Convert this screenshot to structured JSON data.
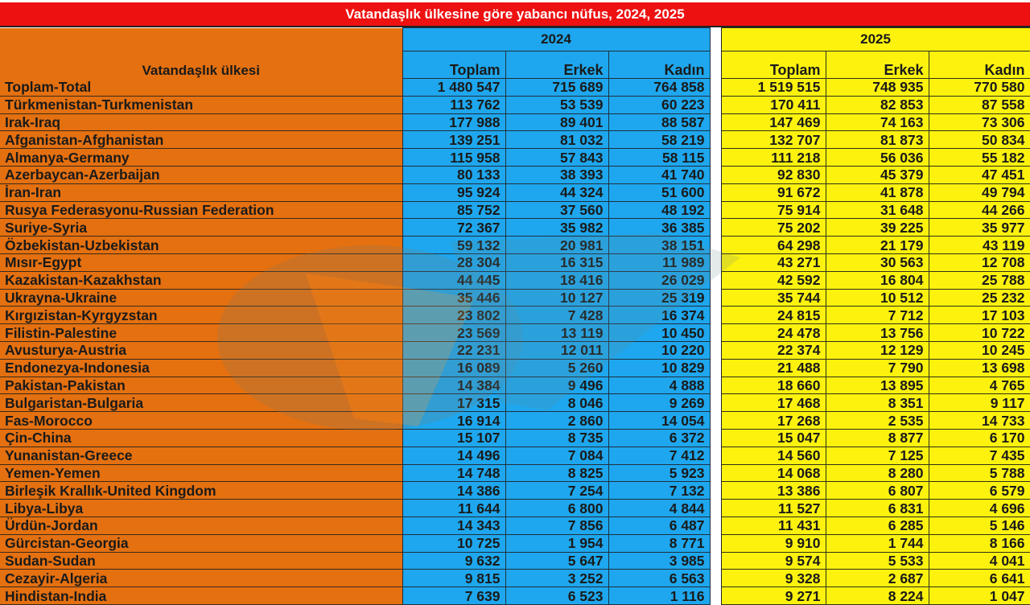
{
  "title": "Vatandaşlık ülkesine göre yabancı nüfus, 2024, 2025",
  "header": {
    "country_col": "Vatandaşlık ülkesi",
    "year_2024": "2024",
    "year_2025": "2025",
    "sub_2024": [
      "Toplam",
      "Erkek",
      "Kadın"
    ],
    "sub_2025": [
      "Toplam",
      "Erkek",
      "Kadın"
    ]
  },
  "colors": {
    "title_bg": "#ee1111",
    "country_bg": "#e47010",
    "col_2024_bg": "#1ea7ee",
    "col_2025_bg": "#fcf20d"
  },
  "rows": [
    {
      "country": "Toplam-Total",
      "v2024": [
        "1 480 547",
        "715 689",
        "764 858"
      ],
      "v2025": [
        "1 519 515",
        "748 935",
        "770 580"
      ]
    },
    {
      "country": "Türkmenistan-Turkmenistan",
      "v2024": [
        "113 762",
        "53 539",
        "60 223"
      ],
      "v2025": [
        "170 411",
        "82 853",
        "87 558"
      ]
    },
    {
      "country": "Irak-Iraq",
      "v2024": [
        "177 988",
        "89 401",
        "88 587"
      ],
      "v2025": [
        "147 469",
        "74 163",
        "73 306"
      ]
    },
    {
      "country": "Afganistan-Afghanistan",
      "v2024": [
        "139 251",
        "81 032",
        "58 219"
      ],
      "v2025": [
        "132 707",
        "81 873",
        "50 834"
      ]
    },
    {
      "country": "Almanya-Germany",
      "v2024": [
        "115 958",
        "57 843",
        "58 115"
      ],
      "v2025": [
        "111 218",
        "56 036",
        "55 182"
      ]
    },
    {
      "country": "Azerbaycan-Azerbaijan",
      "v2024": [
        "80 133",
        "38 393",
        "41 740"
      ],
      "v2025": [
        "92 830",
        "45 379",
        "47 451"
      ]
    },
    {
      "country": "İran-Iran",
      "v2024": [
        "95 924",
        "44 324",
        "51 600"
      ],
      "v2025": [
        "91 672",
        "41 878",
        "49 794"
      ]
    },
    {
      "country": "Rusya Federasyonu-Russian Federation",
      "v2024": [
        "85 752",
        "37 560",
        "48 192"
      ],
      "v2025": [
        "75 914",
        "31 648",
        "44 266"
      ]
    },
    {
      "country": "Suriye-Syria",
      "v2024": [
        "72 367",
        "35 982",
        "36 385"
      ],
      "v2025": [
        "75 202",
        "39 225",
        "35 977"
      ]
    },
    {
      "country": "Özbekistan-Uzbekistan",
      "v2024": [
        "59 132",
        "20 981",
        "38 151"
      ],
      "v2025": [
        "64 298",
        "21 179",
        "43 119"
      ]
    },
    {
      "country": "Mısır-Egypt",
      "v2024": [
        "28 304",
        "16 315",
        "11 989"
      ],
      "v2025": [
        "43 271",
        "30 563",
        "12 708"
      ]
    },
    {
      "country": "Kazakistan-Kazakhstan",
      "v2024": [
        "44 445",
        "18 416",
        "26 029"
      ],
      "v2025": [
        "42 592",
        "16 804",
        "25 788"
      ]
    },
    {
      "country": "Ukrayna-Ukraine",
      "v2024": [
        "35 446",
        "10 127",
        "25 319"
      ],
      "v2025": [
        "35 744",
        "10 512",
        "25 232"
      ]
    },
    {
      "country": "Kırgızistan-Kyrgyzstan",
      "v2024": [
        "23 802",
        "7 428",
        "16 374"
      ],
      "v2025": [
        "24 815",
        "7 712",
        "17 103"
      ]
    },
    {
      "country": "Filistin-Palestine",
      "v2024": [
        "23 569",
        "13 119",
        "10 450"
      ],
      "v2025": [
        "24 478",
        "13 756",
        "10 722"
      ]
    },
    {
      "country": "Avusturya-Austria",
      "v2024": [
        "22 231",
        "12 011",
        "10 220"
      ],
      "v2025": [
        "22 374",
        "12 129",
        "10 245"
      ]
    },
    {
      "country": "Endonezya-Indonesia",
      "v2024": [
        "16 089",
        "5 260",
        "10 829"
      ],
      "v2025": [
        "21 488",
        "7 790",
        "13 698"
      ]
    },
    {
      "country": "Pakistan-Pakistan",
      "v2024": [
        "14 384",
        "9 496",
        "4 888"
      ],
      "v2025": [
        "18 660",
        "13 895",
        "4 765"
      ]
    },
    {
      "country": "Bulgaristan-Bulgaria",
      "v2024": [
        "17 315",
        "8 046",
        "9 269"
      ],
      "v2025": [
        "17 468",
        "8 351",
        "9 117"
      ]
    },
    {
      "country": "Fas-Morocco",
      "v2024": [
        "16 914",
        "2 860",
        "14 054"
      ],
      "v2025": [
        "17 268",
        "2 535",
        "14 733"
      ]
    },
    {
      "country": "Çin-China",
      "v2024": [
        "15 107",
        "8 735",
        "6 372"
      ],
      "v2025": [
        "15 047",
        "8 877",
        "6 170"
      ]
    },
    {
      "country": "Yunanistan-Greece",
      "v2024": [
        "14 496",
        "7 084",
        "7 412"
      ],
      "v2025": [
        "14 560",
        "7 125",
        "7 435"
      ]
    },
    {
      "country": "Yemen-Yemen",
      "v2024": [
        "14 748",
        "8 825",
        "5 923"
      ],
      "v2025": [
        "14 068",
        "8 280",
        "5 788"
      ]
    },
    {
      "country": "Birleşik Krallık-United Kingdom",
      "v2024": [
        "14 386",
        "7 254",
        "7 132"
      ],
      "v2025": [
        "13 386",
        "6 807",
        "6 579"
      ]
    },
    {
      "country": "Libya-Libya",
      "v2024": [
        "11 644",
        "6 800",
        "4 844"
      ],
      "v2025": [
        "11 527",
        "6 831",
        "4 696"
      ]
    },
    {
      "country": "Ürdün-Jordan",
      "v2024": [
        "14 343",
        "7 856",
        "6 487"
      ],
      "v2025": [
        "11 431",
        "6 285",
        "5 146"
      ]
    },
    {
      "country": "Gürcistan-Georgia",
      "v2024": [
        "10 725",
        "1 954",
        "8 771"
      ],
      "v2025": [
        "9 910",
        "1 744",
        "8 166"
      ]
    },
    {
      "country": "Sudan-Sudan",
      "v2024": [
        "9 632",
        "5 647",
        "3 985"
      ],
      "v2025": [
        "9 574",
        "5 533",
        "4 041"
      ]
    },
    {
      "country": "Cezayir-Algeria",
      "v2024": [
        "9 815",
        "3 252",
        "6 563"
      ],
      "v2025": [
        "9 328",
        "2 687",
        "6 641"
      ]
    },
    {
      "country": "Hindistan-India",
      "v2024": [
        "7 639",
        "6 523",
        "1 116"
      ],
      "v2025": [
        "9 271",
        "8 224",
        "1 047"
      ]
    }
  ]
}
